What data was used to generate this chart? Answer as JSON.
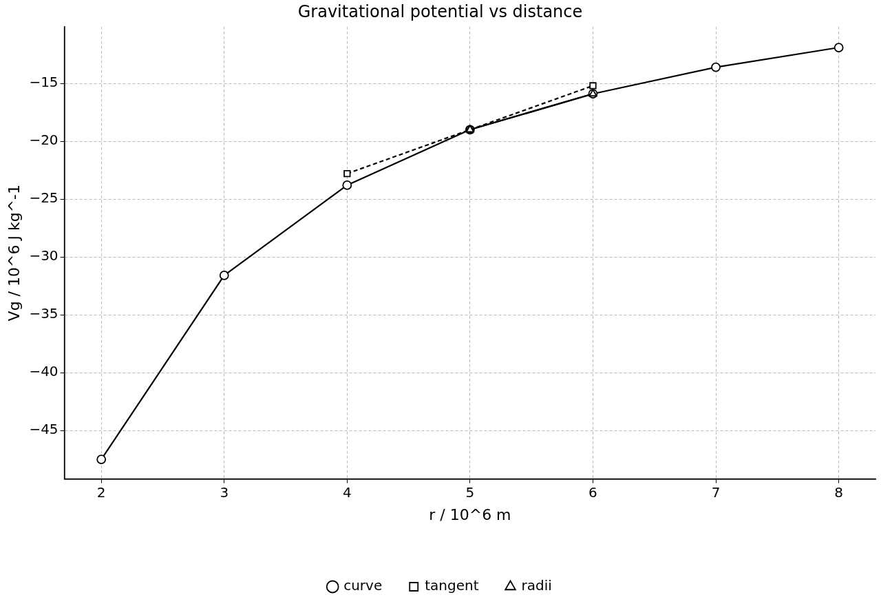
{
  "chart_data": {
    "type": "line",
    "title": "Gravitational potential vs distance",
    "xlabel": "r / 10^6 m",
    "ylabel": "Vg / 10^6 J kg^-1",
    "xlim": [
      1.7,
      8.3
    ],
    "xticks": [
      2,
      3,
      4,
      5,
      6,
      7,
      8
    ],
    "ylim": [
      -49.2,
      -10.1
    ],
    "yticks": [
      -45,
      -40,
      -35,
      -30,
      -25,
      -20,
      -15
    ],
    "grid": true,
    "legend": "bottom",
    "series": [
      {
        "name": "curve",
        "color": "#000000",
        "marker": "circle",
        "line_style": "solid",
        "x": [
          2,
          3,
          4,
          5,
          6,
          7,
          8
        ],
        "values": [
          -47.5,
          -31.6,
          -23.8,
          -19.0,
          -15.9,
          -13.6,
          -11.9
        ]
      },
      {
        "name": "tangent",
        "color": "#000000",
        "marker": "square",
        "line_style": "dashed",
        "x": [
          4,
          5,
          6
        ],
        "values": [
          -22.8,
          -19.0,
          -15.2
        ]
      },
      {
        "name": "radii",
        "color": "#000000",
        "marker": "triangle",
        "line_style": "solid",
        "x": [
          5,
          6
        ],
        "values": [
          -19.0,
          -15.9
        ]
      }
    ]
  }
}
